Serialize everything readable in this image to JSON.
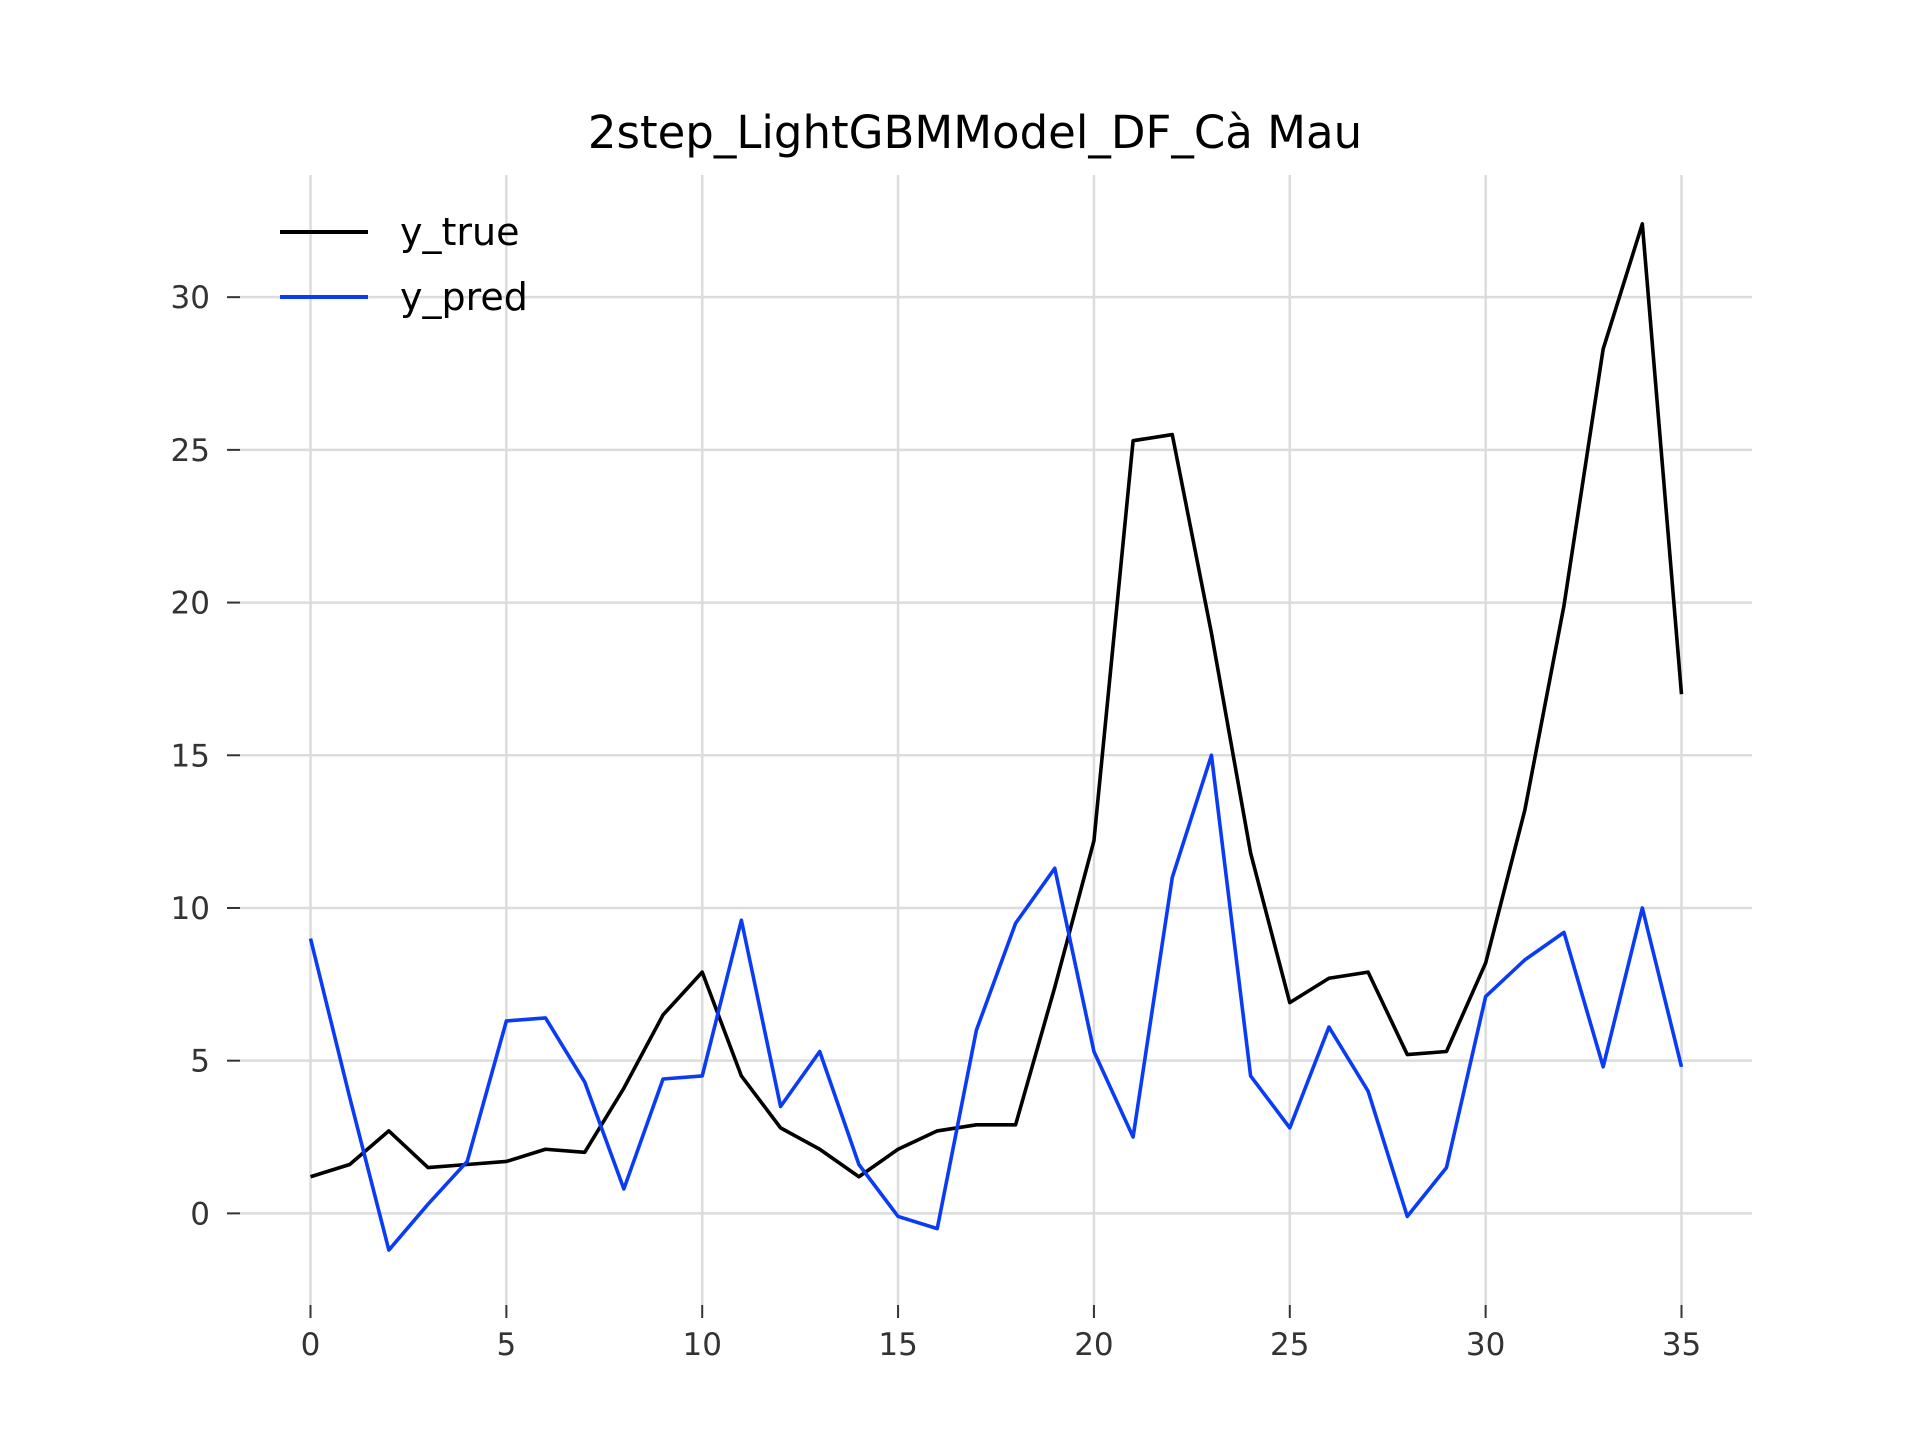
{
  "chart_data": {
    "type": "line",
    "title": "2step_LightGBMModel_DF_Cà Mau",
    "xlabel": "",
    "ylabel": "",
    "xlim": [
      -1.8,
      36.8
    ],
    "ylim": [
      -3.0,
      34.0
    ],
    "xticks": [
      0,
      5,
      10,
      15,
      20,
      25,
      30,
      35
    ],
    "yticks": [
      0,
      5,
      10,
      15,
      20,
      25,
      30
    ],
    "grid": true,
    "legend_position": "top-left",
    "x": [
      0,
      1,
      2,
      3,
      4,
      5,
      6,
      7,
      8,
      9,
      10,
      11,
      12,
      13,
      14,
      15,
      16,
      17,
      18,
      19,
      20,
      21,
      22,
      23,
      24,
      25,
      26,
      27,
      28,
      29,
      30,
      31,
      32,
      33,
      34,
      35
    ],
    "series": [
      {
        "name": "y_true",
        "color": "#000000",
        "values": [
          1.2,
          1.6,
          2.7,
          1.5,
          1.6,
          1.7,
          2.1,
          2.0,
          4.1,
          6.5,
          7.9,
          4.5,
          2.8,
          2.1,
          1.2,
          2.1,
          2.7,
          2.9,
          2.9,
          7.4,
          12.2,
          25.3,
          25.5,
          19.0,
          11.8,
          6.9,
          7.7,
          7.9,
          5.2,
          5.3,
          8.2,
          13.2,
          19.9,
          28.3,
          32.4,
          17.0
        ]
      },
      {
        "name": "y_pred",
        "color": "#0a3cf5",
        "values": [
          9.0,
          3.8,
          -1.2,
          0.3,
          1.7,
          6.3,
          6.4,
          4.3,
          0.8,
          4.4,
          4.5,
          9.6,
          3.5,
          5.3,
          1.6,
          -0.1,
          -0.5,
          6.0,
          9.5,
          11.3,
          5.3,
          2.5,
          11.0,
          15.0,
          4.5,
          2.8,
          6.1,
          4.0,
          -0.1,
          1.5,
          7.1,
          8.3,
          9.2,
          4.8,
          10.0,
          4.8
        ]
      }
    ]
  }
}
